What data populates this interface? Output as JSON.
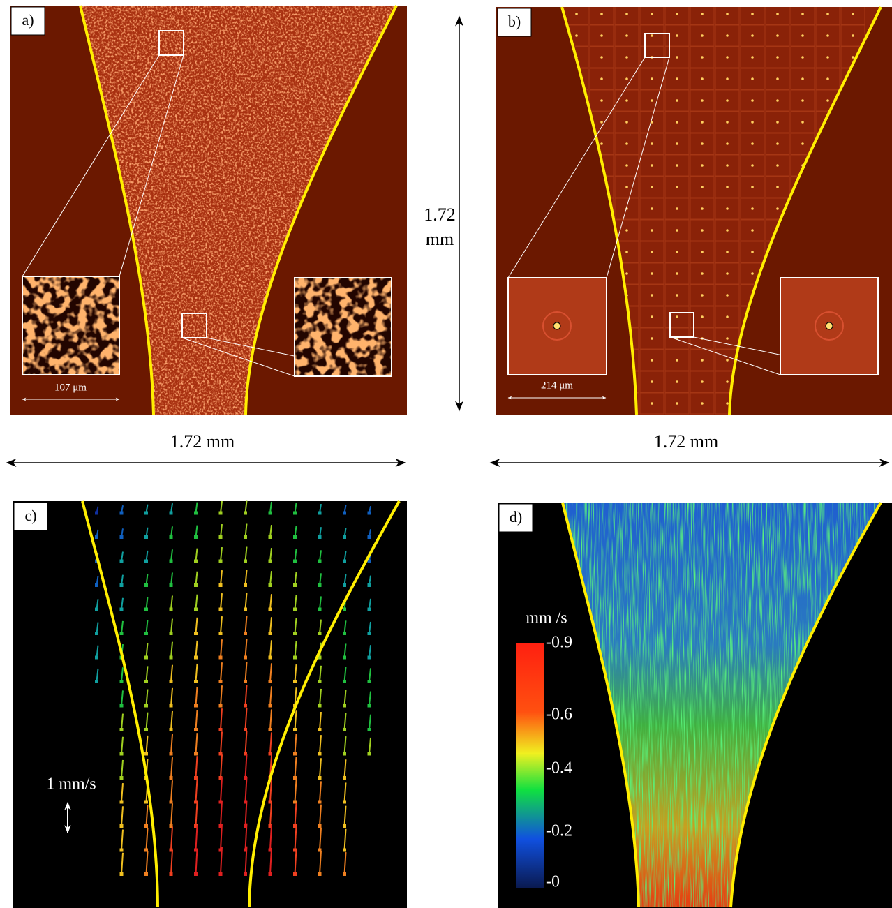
{
  "panels": [
    {
      "label": "a)",
      "inset_scale": "107 μm"
    },
    {
      "label": "b)",
      "inset_scale": "214 μm"
    },
    {
      "label": "c)",
      "vector_scale": "1 mm/s"
    },
    {
      "label": "d)",
      "colorbar": {
        "unit": "mm /s",
        "ticks": [
          "-0.9",
          "-0.6",
          "-0.4",
          "-0.2",
          "-0"
        ]
      }
    }
  ],
  "dimensions": {
    "vertical": [
      "1.72",
      "mm"
    ],
    "horizontal_left": "1.72 mm",
    "horizontal_right": "1.72 mm"
  }
}
